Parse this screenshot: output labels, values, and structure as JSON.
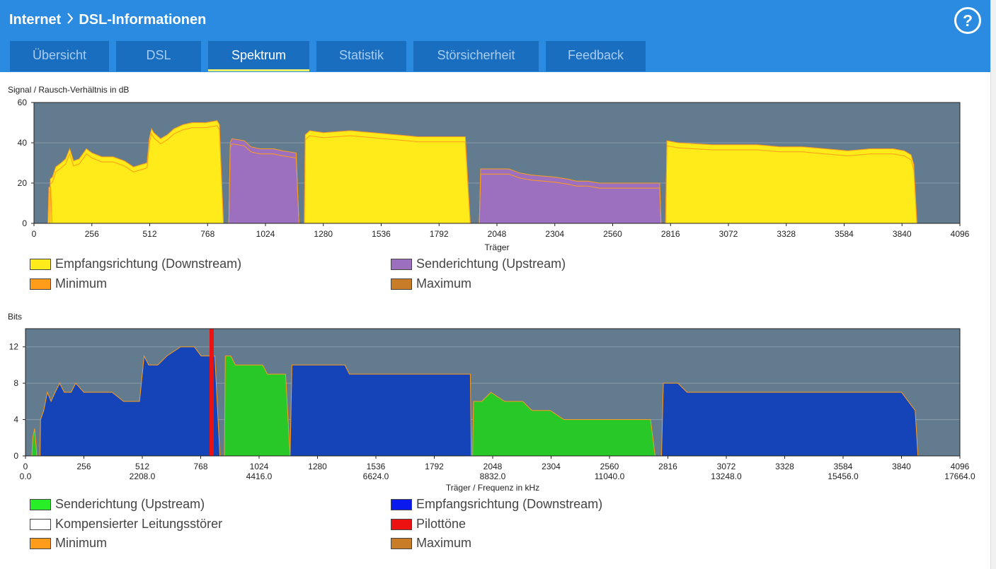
{
  "header": {
    "breadcrumb": [
      "Internet",
      "DSL-Informationen"
    ],
    "help_label": "?"
  },
  "tabs": [
    {
      "label": "Übersicht",
      "active": false
    },
    {
      "label": "DSL",
      "active": false
    },
    {
      "label": "Spektrum",
      "active": true
    },
    {
      "label": "Statistik",
      "active": false
    },
    {
      "label": "Störsicherheit",
      "active": false
    },
    {
      "label": "Feedback",
      "active": false
    }
  ],
  "colors": {
    "header": "#2a8be0",
    "tab": "#1a6ec0",
    "plot_bg": "#637b8f",
    "downstream_snr": "#ffea1a",
    "upstream_snr": "#9c70be",
    "upstream_bits": "#27c827",
    "downstream_bits": "#1444b8",
    "pilot": "#ee1111",
    "minimum": "#ff9c1a",
    "maximum": "#c87c28"
  },
  "chart_data": [
    {
      "type": "area",
      "title": "Signal / Rausch-Verhältnis in dB",
      "xlabel": "Träger",
      "ylabel": "",
      "xlim": [
        0,
        4096
      ],
      "ylim": [
        0,
        60
      ],
      "x_ticks": [
        "0",
        "256",
        "512",
        "768",
        "1024",
        "1280",
        "1536",
        "1792",
        "2048",
        "2304",
        "2560",
        "2816",
        "3072",
        "3328",
        "3584",
        "3840",
        "4096"
      ],
      "y_ticks": [
        "0",
        "20",
        "40",
        "60"
      ],
      "series": [
        {
          "name": "Empfangsrichtung (Downstream)",
          "color": "#ffea1a",
          "points": [
            [
              62,
              0
            ],
            [
              66,
              18
            ],
            [
              74,
              18
            ],
            [
              80,
              0
            ],
            [
              70,
              0
            ],
            [
              72,
              22
            ],
            [
              82,
              23
            ],
            [
              96,
              28
            ],
            [
              120,
              30
            ],
            [
              140,
              32
            ],
            [
              158,
              37
            ],
            [
              175,
              31
            ],
            [
              200,
              32
            ],
            [
              232,
              37
            ],
            [
              256,
              35
            ],
            [
              300,
              33
            ],
            [
              350,
              33
            ],
            [
              400,
              31
            ],
            [
              440,
              28
            ],
            [
              470,
              29
            ],
            [
              500,
              30
            ],
            [
              510,
              42
            ],
            [
              520,
              47
            ],
            [
              530,
              45
            ],
            [
              560,
              42
            ],
            [
              590,
              44
            ],
            [
              620,
              47
            ],
            [
              660,
              49
            ],
            [
              700,
              50
            ],
            [
              760,
              50
            ],
            [
              810,
              51
            ],
            [
              820,
              49
            ],
            [
              838,
              0
            ]
          ]
        },
        {
          "name": "Senderichtung (Upstream)",
          "color": "#9c70be",
          "points": [
            [
              862,
              0
            ],
            [
              868,
              40
            ],
            [
              876,
              42
            ],
            [
              930,
              41
            ],
            [
              960,
              38
            ],
            [
              1000,
              37
            ],
            [
              1060,
              37
            ],
            [
              1100,
              36
            ],
            [
              1160,
              35
            ],
            [
              1172,
              0
            ],
            [
              1740,
              0
            ],
            [
              1750,
              0
            ],
            [
              1970,
              0
            ],
            [
              1976,
              27
            ],
            [
              2000,
              27
            ],
            [
              2100,
              27
            ],
            [
              2150,
              25
            ],
            [
              2200,
              24
            ],
            [
              2300,
              23
            ],
            [
              2360,
              22
            ],
            [
              2400,
              21
            ],
            [
              2450,
              21
            ],
            [
              2500,
              20
            ],
            [
              2600,
              20
            ],
            [
              2700,
              20
            ],
            [
              2768,
              20
            ],
            [
              2774,
              0
            ]
          ]
        },
        {
          "name": "Empfangsrichtung (Downstream) 2",
          "color": "#ffea1a",
          "points": [
            [
              1196,
              0
            ],
            [
              1200,
              44
            ],
            [
              1220,
              46
            ],
            [
              1280,
              45
            ],
            [
              1400,
              46
            ],
            [
              1500,
              45
            ],
            [
              1600,
              44
            ],
            [
              1700,
              43
            ],
            [
              1800,
              43
            ],
            [
              1908,
              43
            ],
            [
              1930,
              0
            ],
            [
              2794,
              0
            ],
            [
              2800,
              41
            ],
            [
              2850,
              40
            ],
            [
              3000,
              39
            ],
            [
              3100,
              39
            ],
            [
              3200,
              39
            ],
            [
              3300,
              38
            ],
            [
              3400,
              38
            ],
            [
              3500,
              37
            ],
            [
              3600,
              36
            ],
            [
              3700,
              37
            ],
            [
              3800,
              37
            ],
            [
              3850,
              36
            ],
            [
              3880,
              34
            ],
            [
              3892,
              29
            ],
            [
              3906,
              0
            ]
          ]
        }
      ]
    },
    {
      "type": "area",
      "title": "Bits",
      "xlabel": "Träger / Frequenz in kHz",
      "ylabel": "",
      "xlim": [
        0,
        4096
      ],
      "ylim": [
        0,
        14
      ],
      "x_ticks": [
        "0",
        "256",
        "512",
        "768",
        "1024",
        "1280",
        "1536",
        "1792",
        "2048",
        "2304",
        "2560",
        "2816",
        "3072",
        "3328",
        "3584",
        "3840",
        "4096"
      ],
      "x_ticks_khz": [
        "0.0",
        "",
        "2208.0",
        "",
        "4416.0",
        "",
        "6624.0",
        "",
        "8832.0",
        "",
        "11040.0",
        "",
        "13248.0",
        "",
        "15456.0",
        "",
        "17664.0"
      ],
      "y_ticks": [
        "0",
        "4",
        "8",
        "12"
      ],
      "series": [
        {
          "name": "Senderichtung (Upstream)",
          "color": "#27c827",
          "points": [
            [
              28,
              0
            ],
            [
              32,
              2
            ],
            [
              40,
              3
            ],
            [
              50,
              0
            ],
            [
              872,
              0
            ],
            [
              876,
              11
            ],
            [
              900,
              11
            ],
            [
              920,
              10
            ],
            [
              960,
              10
            ],
            [
              1000,
              10
            ],
            [
              1040,
              10
            ],
            [
              1060,
              9
            ],
            [
              1100,
              9
            ],
            [
              1140,
              9
            ],
            [
              1160,
              0
            ],
            [
              1960,
              0
            ],
            [
              1964,
              6
            ],
            [
              2000,
              6
            ],
            [
              2040,
              7
            ],
            [
              2100,
              6
            ],
            [
              2180,
              6
            ],
            [
              2220,
              5
            ],
            [
              2300,
              5
            ],
            [
              2360,
              4
            ],
            [
              2500,
              4
            ],
            [
              2600,
              4
            ],
            [
              2650,
              4
            ],
            [
              2700,
              4
            ],
            [
              2740,
              4
            ],
            [
              2760,
              0
            ]
          ]
        },
        {
          "name": "Empfangsrichtung (Downstream)",
          "color": "#1444b8",
          "points": [
            [
              64,
              0
            ],
            [
              66,
              4
            ],
            [
              80,
              5
            ],
            [
              96,
              7
            ],
            [
              112,
              6
            ],
            [
              130,
              7
            ],
            [
              150,
              8
            ],
            [
              170,
              7
            ],
            [
              200,
              7
            ],
            [
              220,
              8
            ],
            [
              256,
              7
            ],
            [
              300,
              7
            ],
            [
              380,
              7
            ],
            [
              430,
              6
            ],
            [
              500,
              6
            ],
            [
              520,
              11
            ],
            [
              540,
              10
            ],
            [
              580,
              10
            ],
            [
              620,
              11
            ],
            [
              680,
              12
            ],
            [
              740,
              12
            ],
            [
              770,
              11
            ],
            [
              800,
              11
            ],
            [
              830,
              11
            ],
            [
              852,
              0
            ],
            [
              1160,
              0
            ],
            [
              1168,
              10
            ],
            [
              1200,
              10
            ],
            [
              1250,
              10
            ],
            [
              1300,
              10
            ],
            [
              1360,
              10
            ],
            [
              1400,
              10
            ],
            [
              1420,
              9
            ],
            [
              1460,
              9
            ],
            [
              1500,
              9
            ],
            [
              1540,
              9
            ],
            [
              1600,
              9
            ],
            [
              1700,
              9
            ],
            [
              1800,
              9
            ],
            [
              1900,
              9
            ],
            [
              1950,
              9
            ],
            [
              1954,
              0
            ],
            [
              2788,
              0
            ],
            [
              2796,
              8
            ],
            [
              2860,
              8
            ],
            [
              2900,
              7
            ],
            [
              3000,
              7
            ],
            [
              3100,
              7
            ],
            [
              3200,
              7
            ],
            [
              3300,
              7
            ],
            [
              3400,
              7
            ],
            [
              3500,
              7
            ],
            [
              3600,
              7
            ],
            [
              3700,
              7
            ],
            [
              3800,
              7
            ],
            [
              3840,
              7
            ],
            [
              3870,
              6
            ],
            [
              3900,
              5
            ],
            [
              3912,
              0
            ]
          ]
        }
      ],
      "pilot": {
        "name": "Pilottöne",
        "x": 816
      }
    }
  ],
  "legend1": [
    {
      "label": "Empfangsrichtung (Downstream)",
      "color": "#ffea1a"
    },
    {
      "label": "Senderichtung (Upstream)",
      "color": "#9c70be"
    },
    {
      "label": "Minimum",
      "color": "#ff9c1a"
    },
    {
      "label": "Maximum",
      "color": "#c87c28"
    }
  ],
  "legend2": [
    {
      "label": "Senderichtung (Upstream)",
      "color": "#27ee27"
    },
    {
      "label": "Empfangsrichtung (Downstream)",
      "color": "#0a1aee"
    },
    {
      "label": "Kompensierter Leitungsstörer",
      "color": "#ffffff"
    },
    {
      "label": "Pilottöne",
      "color": "#ee1111"
    },
    {
      "label": "Minimum",
      "color": "#ff9c1a"
    },
    {
      "label": "Maximum",
      "color": "#c87c28"
    }
  ]
}
